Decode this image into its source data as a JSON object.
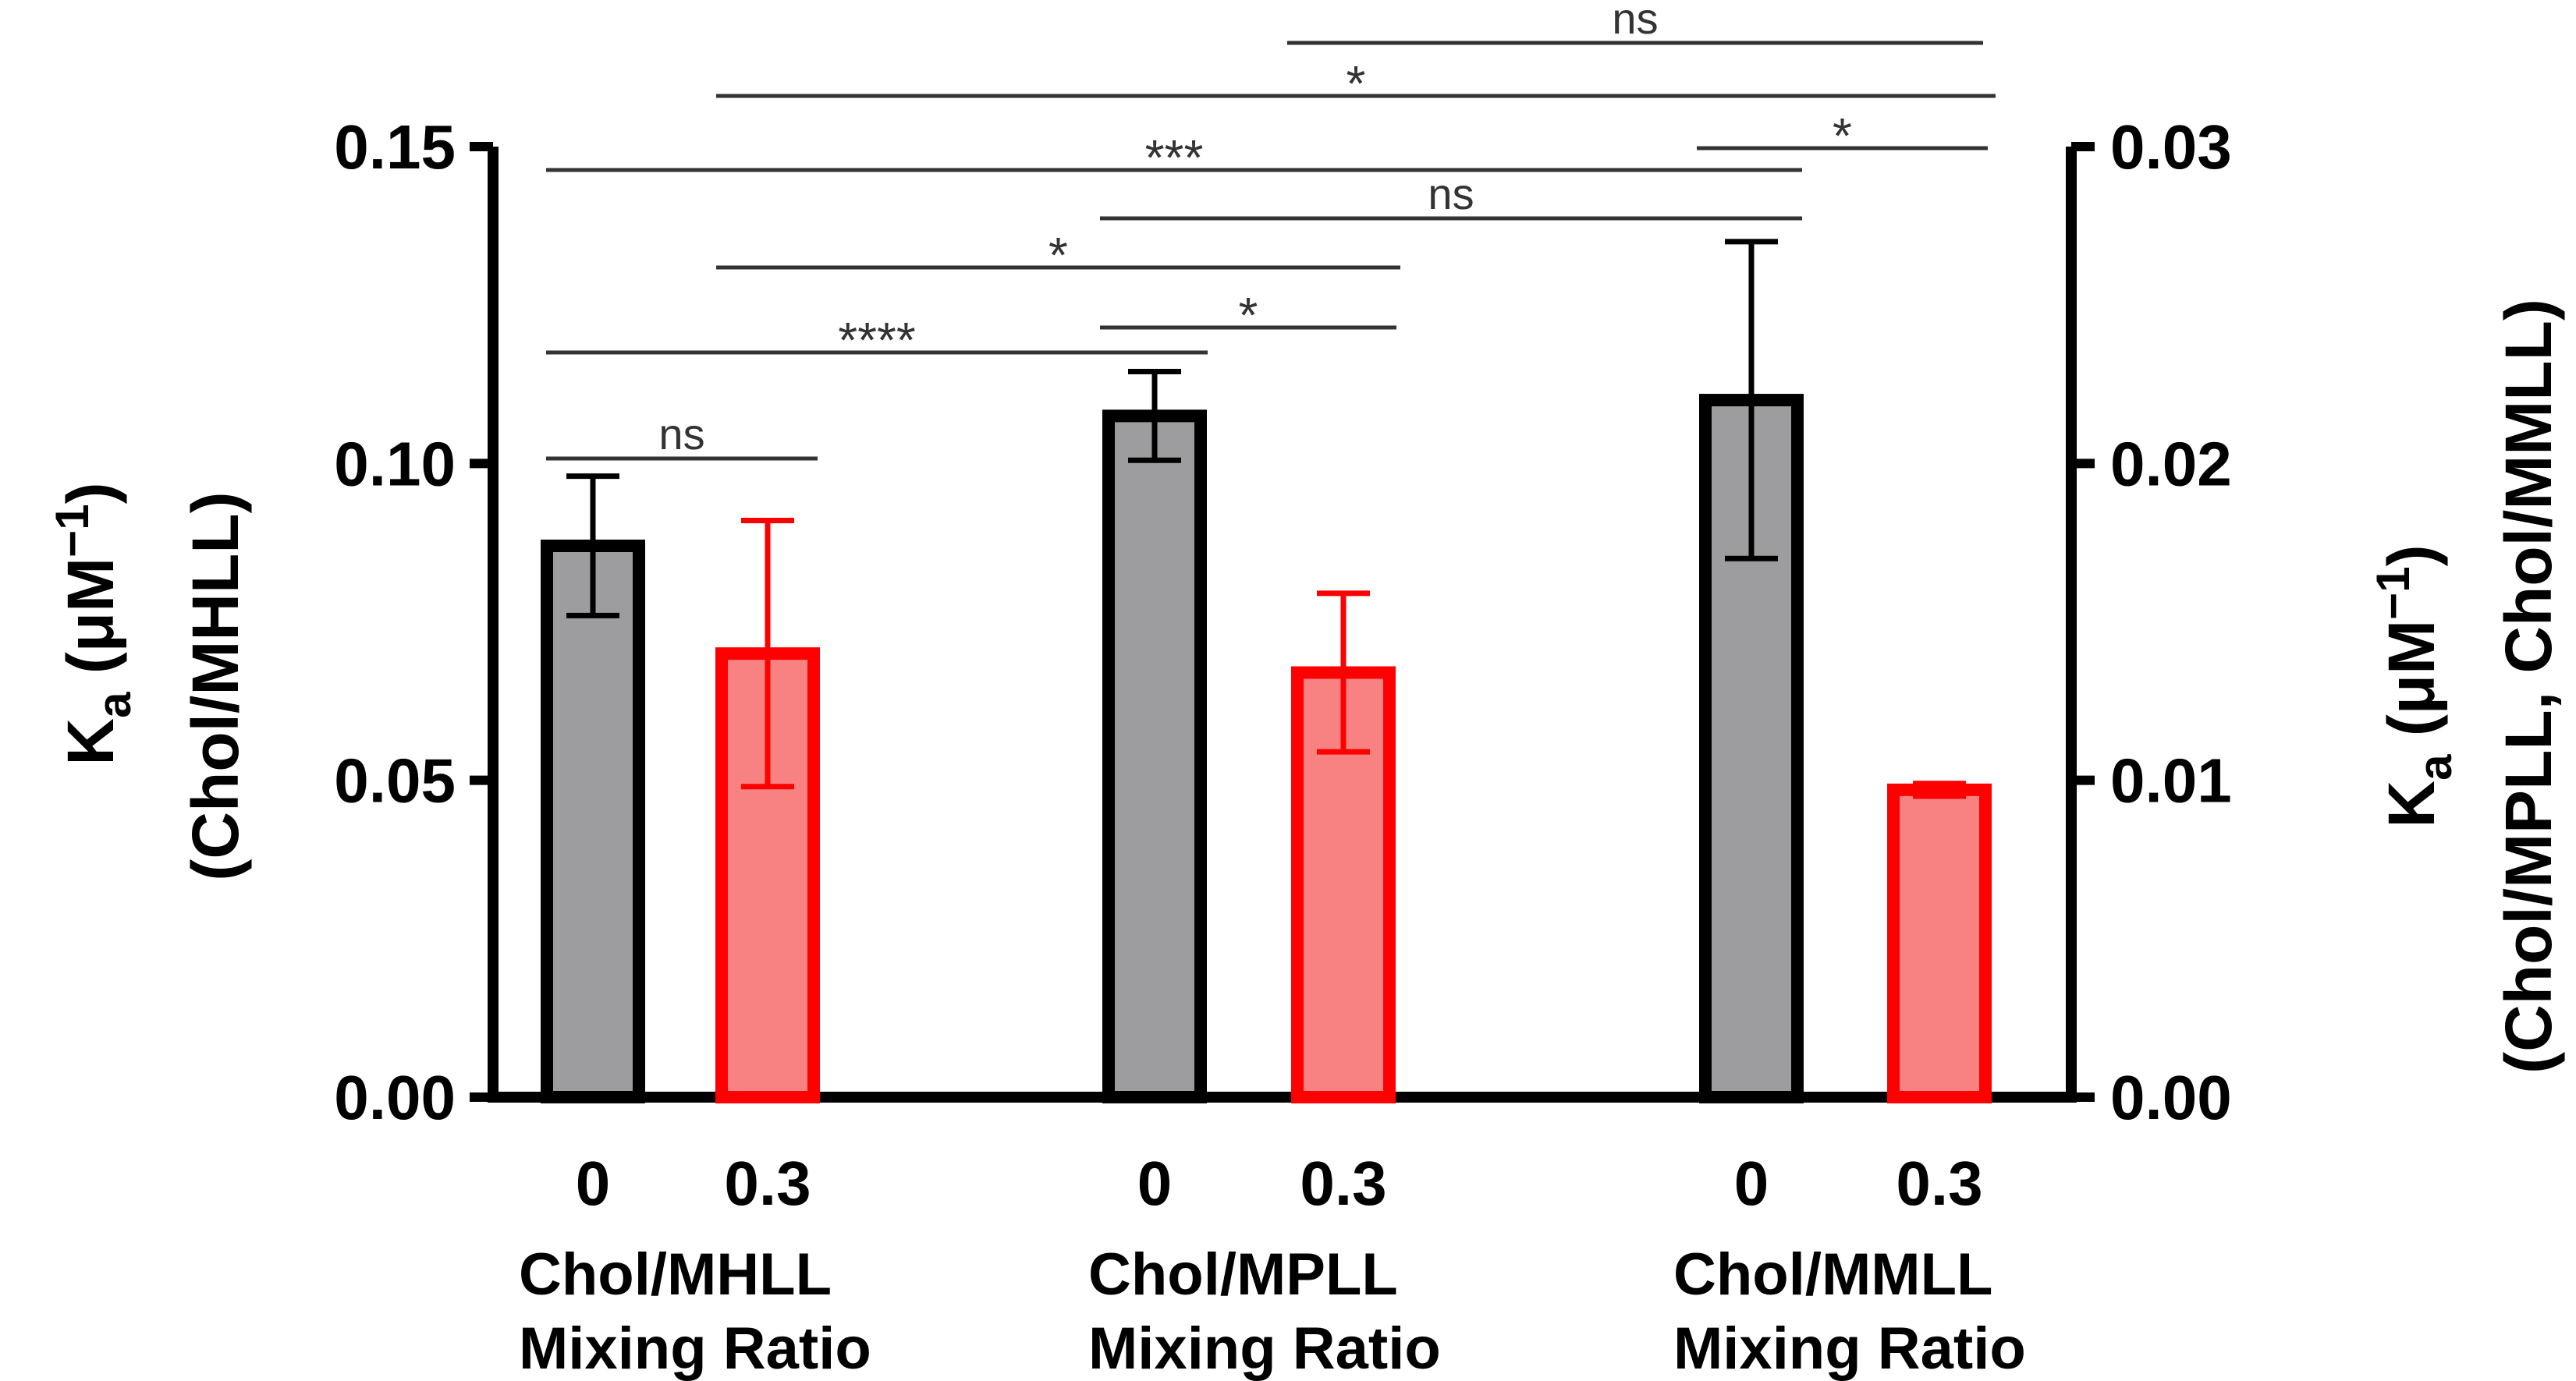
{
  "chart_data": {
    "type": "bar",
    "groups": [
      {
        "label_line1": "Chol/MHLL",
        "label_line2": "Mixing Ratio",
        "axis": "left"
      },
      {
        "label_line1": "Chol/MPLL",
        "label_line2": "Mixing Ratio",
        "axis": "right"
      },
      {
        "label_line1": "Chol/MMLL",
        "label_line2": "Mixing Ratio",
        "axis": "right"
      }
    ],
    "bars": [
      {
        "group": 0,
        "category": "0",
        "value": 0.087,
        "err": 0.011,
        "axis": "left",
        "color": "gray"
      },
      {
        "group": 0,
        "category": "0.3",
        "value": 0.07,
        "err": 0.021,
        "axis": "left",
        "color": "red"
      },
      {
        "group": 1,
        "category": "0",
        "value": 0.0215,
        "err": 0.0014,
        "axis": "right",
        "color": "gray"
      },
      {
        "group": 1,
        "category": "0.3",
        "value": 0.0134,
        "err": 0.0025,
        "axis": "right",
        "color": "red"
      },
      {
        "group": 2,
        "category": "0",
        "value": 0.022,
        "err": 0.005,
        "axis": "right",
        "color": "gray"
      },
      {
        "group": 2,
        "category": "0.3",
        "value": 0.0097,
        "err": 0.0002,
        "axis": "right",
        "color": "red"
      }
    ],
    "left_axis": {
      "title_main": "K",
      "title_sub": "a",
      "title_units": " (μM",
      "title_exp": "−1",
      "title_close": ")",
      "title_line2": "(Chol/MHLL)",
      "ylim": [
        0,
        0.15
      ],
      "ticks": [
        "0.00",
        "0.05",
        "0.10",
        "0.15"
      ]
    },
    "right_axis": {
      "title_main": "K",
      "title_sub": "a",
      "title_units": " (μM",
      "title_exp": "−1",
      "title_close": ")",
      "title_line2": "(Chol/MPLL, Chol/MMLL)",
      "ylim": [
        0,
        0.03
      ],
      "ticks": [
        "0.00",
        "0.01",
        "0.02",
        "0.03"
      ]
    },
    "significance": [
      {
        "from": 0,
        "to": 1,
        "label": "ns"
      },
      {
        "from": 0,
        "to": 2,
        "label": "****"
      },
      {
        "from": 2,
        "to": 3,
        "label": "*"
      },
      {
        "from": 1,
        "to": 3,
        "label": "*"
      },
      {
        "from": 2,
        "to": 4,
        "label": "ns"
      },
      {
        "from": 0,
        "to": 4,
        "label": "***"
      },
      {
        "from": 4,
        "to": 5,
        "label": "*"
      },
      {
        "from": 1,
        "to": 5,
        "label": "*"
      },
      {
        "from": 3,
        "to": 5,
        "label": "ns"
      }
    ]
  },
  "colors": {
    "gray_fill": "#9d9d9f",
    "red_fill": "#f88282",
    "red_edge": "#ff0000",
    "axis": "#000000",
    "sig_line": "#333333"
  }
}
